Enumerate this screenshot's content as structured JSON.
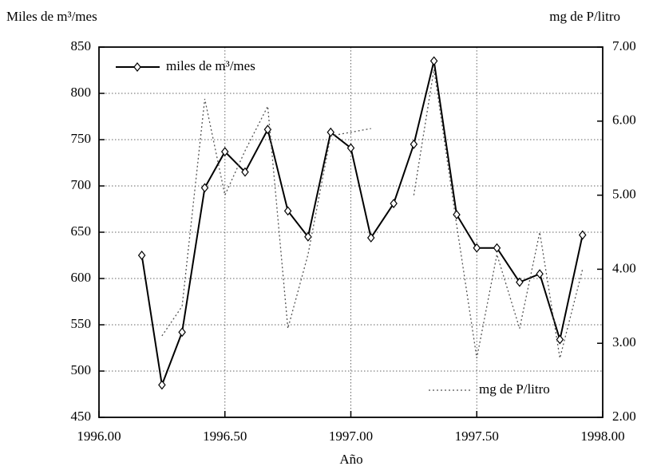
{
  "chart_data": {
    "type": "line",
    "ylabel": "Miles de m³/mes",
    "y2label": "mg de P/litro",
    "xlabel": "Año",
    "x": [
      1996.17,
      1996.25,
      1996.33,
      1996.42,
      1996.5,
      1996.58,
      1996.67,
      1996.75,
      1996.83,
      1996.92,
      1997.0,
      1997.08,
      1997.17,
      1997.25,
      1997.33,
      1997.42,
      1997.5,
      1997.58,
      1997.67,
      1997.75,
      1997.83,
      1997.92
    ],
    "series": [
      {
        "name": "miles de m³/mes",
        "color": "#000000",
        "marker": "diamond",
        "dash": "solid",
        "values": [
          625,
          485,
          542,
          698,
          737,
          715,
          761,
          673,
          645,
          758,
          741,
          644,
          681,
          745,
          835,
          669,
          633,
          633,
          596,
          605,
          534,
          647
        ]
      },
      {
        "name": "mg de P/litro",
        "color": "#555555",
        "marker": "none",
        "dash": "dotted",
        "axis": "y2",
        "values": [
          null,
          3.1,
          3.5,
          6.3,
          5.0,
          5.6,
          6.2,
          3.2,
          4.2,
          5.8,
          5.85,
          5.9,
          null,
          5.0,
          6.7,
          4.6,
          2.8,
          4.2,
          3.2,
          4.5,
          2.8,
          4.0
        ]
      }
    ],
    "xlim": [
      1996,
      1998
    ],
    "xticks": [
      {
        "value": 1996,
        "label": "1996.00"
      },
      {
        "value": 1996.5,
        "label": "1996.50"
      },
      {
        "value": 1997,
        "label": "1997.00"
      },
      {
        "value": 1997.5,
        "label": "1997.50"
      },
      {
        "value": 1998,
        "label": "1998.00"
      }
    ],
    "ylim": [
      450,
      850
    ],
    "yticks": [
      450,
      500,
      550,
      600,
      650,
      700,
      750,
      800,
      850
    ],
    "y2lim": [
      2,
      7
    ],
    "y2ticks": [
      {
        "value": 2,
        "label": "2.00"
      },
      {
        "value": 3,
        "label": "3.00"
      },
      {
        "value": 4,
        "label": "4.00"
      },
      {
        "value": 5,
        "label": "5.00"
      },
      {
        "value": 6,
        "label": "6.00"
      },
      {
        "value": 7,
        "label": "7.00"
      }
    ],
    "grid": true
  }
}
